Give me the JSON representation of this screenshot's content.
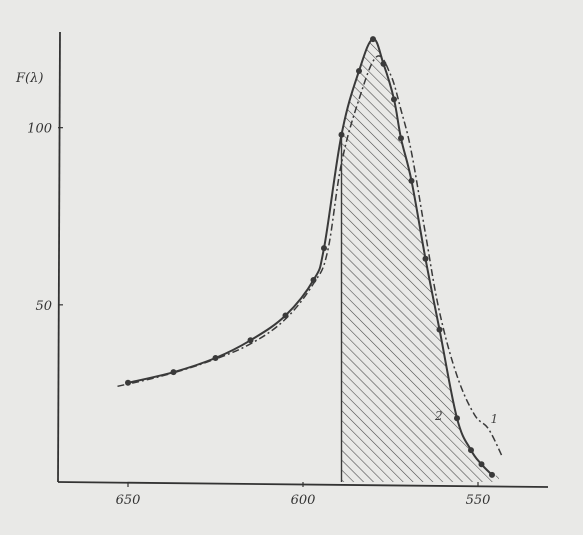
{
  "chart_data": {
    "type": "line",
    "title": "",
    "xlabel": "",
    "ylabel": "F(λ)",
    "x_reversed": true,
    "xlim": [
      670,
      530
    ],
    "ylim": [
      0,
      127
    ],
    "x_ticks": [
      650,
      600,
      550
    ],
    "x_tick_labels": [
      "650",
      "600",
      "550"
    ],
    "y_ticks": [
      50,
      100
    ],
    "y_tick_labels": [
      "50",
      "100"
    ],
    "grid": false,
    "legend": "none",
    "shaded_region": {
      "x_from": 589,
      "x_to": 544,
      "series": "2",
      "pattern": "diagonal-hatch"
    },
    "series": [
      {
        "name": "2",
        "style": "solid",
        "markers": true,
        "x": [
          650,
          637,
          625,
          615,
          605,
          597,
          594,
          589,
          584,
          580,
          577,
          574,
          572,
          569,
          565,
          561,
          556,
          552,
          549,
          546
        ],
        "y": [
          28,
          31,
          35,
          40,
          47,
          57,
          66,
          98,
          116,
          125,
          118,
          108,
          97,
          85,
          63,
          43,
          18,
          9,
          5,
          2
        ]
      },
      {
        "name": "1",
        "style": "dash-dot",
        "markers": false,
        "x": [
          653,
          640,
          627,
          615,
          605,
          597,
          593,
          589,
          584,
          579,
          575,
          572,
          569,
          565,
          561,
          556,
          551,
          547,
          543
        ],
        "y": [
          27,
          30,
          34,
          39,
          46,
          56,
          65,
          90,
          108,
          120,
          115,
          105,
          93,
          70,
          48,
          30,
          19,
          15,
          7
        ]
      }
    ],
    "curve_labels": [
      {
        "text": "1",
        "series": "1"
      },
      {
        "text": "2",
        "series": "2"
      }
    ],
    "colors": {
      "line": "#3a3a3a",
      "background": "#e9e9e7"
    }
  }
}
